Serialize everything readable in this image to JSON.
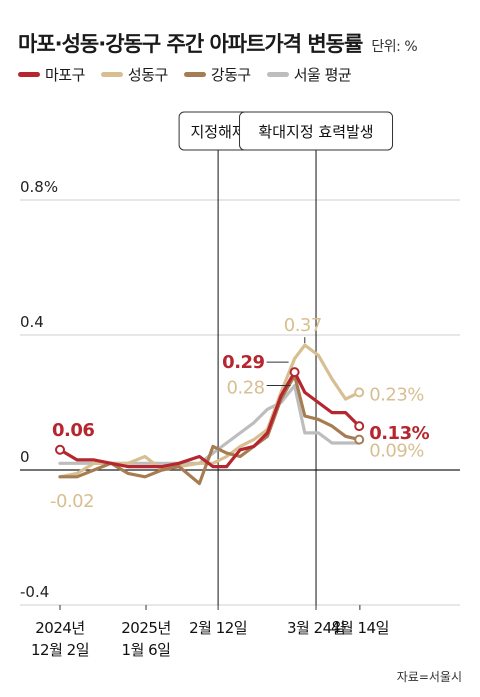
{
  "title": "마포·성동·강동구 주간 아파트가격 변동률",
  "unit": "단위: %",
  "source": "자료=서울시",
  "chart_data": {
    "type": "line",
    "ylim": [
      -0.4,
      0.8
    ],
    "yticks": [
      "0.8%",
      "0.4",
      "0",
      "-0.4"
    ],
    "ytick_values": [
      0.8,
      0.4,
      0,
      -0.4
    ],
    "xlim": [
      0,
      1
    ],
    "xticks": [
      {
        "label": "2024년\n12월 2일",
        "x": 0.0
      },
      {
        "label": "2025년\n1월 6일",
        "x": 0.253
      },
      {
        "label": "2월 12일",
        "x": 0.465
      },
      {
        "label": "3월 24일",
        "x": 0.753
      },
      {
        "label": "4월 14일",
        "x": 0.882
      }
    ],
    "events": [
      {
        "label": "지정해제",
        "x": 0.465
      },
      {
        "label": "확대지정 효력발생",
        "x": 0.753
      }
    ],
    "series": [
      {
        "name": "마포구",
        "color": "#b5262f",
        "width": 3.2,
        "points": [
          [
            0,
            0.06
          ],
          [
            0.05,
            0.03
          ],
          [
            0.1,
            0.03
          ],
          [
            0.15,
            0.02
          ],
          [
            0.2,
            0.01
          ],
          [
            0.25,
            0.01
          ],
          [
            0.3,
            0.01
          ],
          [
            0.35,
            0.02
          ],
          [
            0.41,
            0.04
          ],
          [
            0.45,
            0.01
          ],
          [
            0.49,
            0.01
          ],
          [
            0.53,
            0.06
          ],
          [
            0.57,
            0.07
          ],
          [
            0.61,
            0.11
          ],
          [
            0.65,
            0.22
          ],
          [
            0.69,
            0.29
          ],
          [
            0.72,
            0.23
          ],
          [
            0.76,
            0.2
          ],
          [
            0.8,
            0.17
          ],
          [
            0.84,
            0.17
          ],
          [
            0.88,
            0.13
          ]
        ]
      },
      {
        "name": "성동구",
        "color": "#d8bf92",
        "width": 3.2,
        "points": [
          [
            0,
            -0.02
          ],
          [
            0.05,
            -0.01
          ],
          [
            0.1,
            0.02
          ],
          [
            0.15,
            0.02
          ],
          [
            0.2,
            0.02
          ],
          [
            0.25,
            0.04
          ],
          [
            0.3,
            0.0
          ],
          [
            0.35,
            0.01
          ],
          [
            0.41,
            0.02
          ],
          [
            0.45,
            0.02
          ],
          [
            0.49,
            0.04
          ],
          [
            0.53,
            0.07
          ],
          [
            0.57,
            0.09
          ],
          [
            0.61,
            0.12
          ],
          [
            0.65,
            0.23
          ],
          [
            0.69,
            0.33
          ],
          [
            0.72,
            0.37
          ],
          [
            0.76,
            0.34
          ],
          [
            0.8,
            0.27
          ],
          [
            0.84,
            0.21
          ],
          [
            0.88,
            0.23
          ]
        ]
      },
      {
        "name": "강동구",
        "color": "#a67c52",
        "width": 3.2,
        "points": [
          [
            0,
            -0.02
          ],
          [
            0.05,
            -0.02
          ],
          [
            0.1,
            0.0
          ],
          [
            0.15,
            0.02
          ],
          [
            0.2,
            -0.01
          ],
          [
            0.25,
            -0.02
          ],
          [
            0.3,
            0.0
          ],
          [
            0.35,
            0.01
          ],
          [
            0.41,
            -0.04
          ],
          [
            0.45,
            0.07
          ],
          [
            0.49,
            0.05
          ],
          [
            0.53,
            0.04
          ],
          [
            0.57,
            0.07
          ],
          [
            0.61,
            0.1
          ],
          [
            0.65,
            0.21
          ],
          [
            0.69,
            0.28
          ],
          [
            0.72,
            0.16
          ],
          [
            0.76,
            0.15
          ],
          [
            0.8,
            0.13
          ],
          [
            0.84,
            0.1
          ],
          [
            0.88,
            0.09
          ]
        ]
      },
      {
        "name": "서울 평균",
        "color": "#bdbdbd",
        "width": 3.2,
        "points": [
          [
            0,
            0.02
          ],
          [
            0.05,
            0.02
          ],
          [
            0.1,
            0.02
          ],
          [
            0.15,
            0.02
          ],
          [
            0.2,
            0.02
          ],
          [
            0.25,
            0.02
          ],
          [
            0.3,
            0.02
          ],
          [
            0.35,
            0.02
          ],
          [
            0.41,
            0.02
          ],
          [
            0.45,
            0.05
          ],
          [
            0.49,
            0.08
          ],
          [
            0.53,
            0.11
          ],
          [
            0.57,
            0.14
          ],
          [
            0.61,
            0.18
          ],
          [
            0.65,
            0.2
          ],
          [
            0.69,
            0.25
          ],
          [
            0.72,
            0.11
          ],
          [
            0.76,
            0.11
          ],
          [
            0.8,
            0.08
          ],
          [
            0.84,
            0.08
          ],
          [
            0.88,
            0.08
          ]
        ]
      }
    ],
    "data_labels": [
      {
        "series": "마포구",
        "text": "0.06",
        "x": 0.0,
        "y": 0.06
      },
      {
        "series": "성동구",
        "text": "-0.02",
        "x": 0.0,
        "y": -0.02
      },
      {
        "series": "성동구",
        "text": "0.37",
        "x": 0.72,
        "y": 0.37
      },
      {
        "series": "마포구",
        "text": "0.29",
        "x": 0.69,
        "y": 0.29
      },
      {
        "series": "성동구",
        "text": "0.28",
        "x": 0.69,
        "y": 0.28
      },
      {
        "series": "성동구",
        "text": "0.23%",
        "x": 0.88,
        "y": 0.23
      },
      {
        "series": "마포구",
        "text": "0.13%",
        "x": 0.88,
        "y": 0.13
      },
      {
        "series": "성동구",
        "text": "0.09%",
        "x": 0.88,
        "y": 0.09
      }
    ]
  }
}
